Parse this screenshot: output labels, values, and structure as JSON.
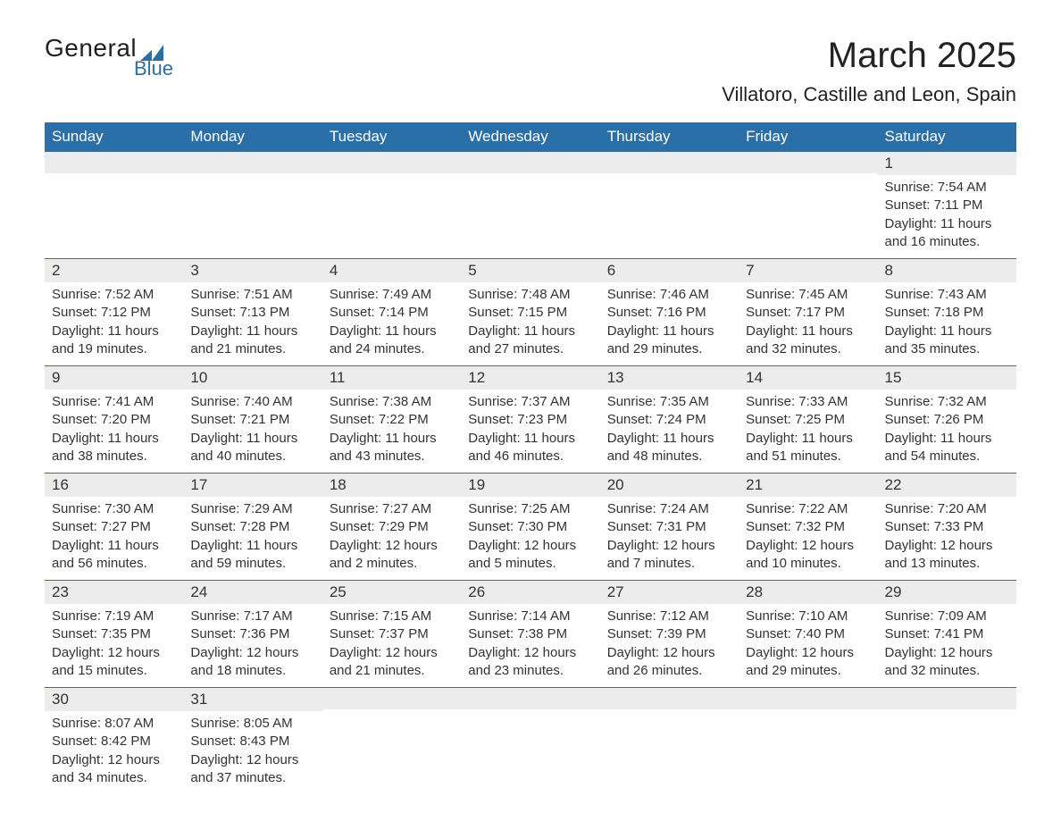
{
  "logo": {
    "main": "General",
    "sub": "Blue",
    "accent": "#2b6fa8"
  },
  "title": "March 2025",
  "location": "Villatoro, Castille and Leon, Spain",
  "dayHeaders": [
    "Sunday",
    "Monday",
    "Tuesday",
    "Wednesday",
    "Thursday",
    "Friday",
    "Saturday"
  ],
  "colors": {
    "header_bg": "#2b6fa8",
    "header_text": "#ffffff",
    "daynum_bg": "#ececec",
    "text": "#333333",
    "row_border": "#2b6fa8"
  },
  "fonts": {
    "title_size_pt": 30,
    "location_size_pt": 16,
    "header_size_pt": 13,
    "daynum_size_pt": 13,
    "body_size_pt": 11
  },
  "weeks": [
    [
      {
        "n": "",
        "sunrise": "",
        "sunset": "",
        "daylight": ""
      },
      {
        "n": "",
        "sunrise": "",
        "sunset": "",
        "daylight": ""
      },
      {
        "n": "",
        "sunrise": "",
        "sunset": "",
        "daylight": ""
      },
      {
        "n": "",
        "sunrise": "",
        "sunset": "",
        "daylight": ""
      },
      {
        "n": "",
        "sunrise": "",
        "sunset": "",
        "daylight": ""
      },
      {
        "n": "",
        "sunrise": "",
        "sunset": "",
        "daylight": ""
      },
      {
        "n": "1",
        "sunrise": "Sunrise: 7:54 AM",
        "sunset": "Sunset: 7:11 PM",
        "daylight": "Daylight: 11 hours and 16 minutes."
      }
    ],
    [
      {
        "n": "2",
        "sunrise": "Sunrise: 7:52 AM",
        "sunset": "Sunset: 7:12 PM",
        "daylight": "Daylight: 11 hours and 19 minutes."
      },
      {
        "n": "3",
        "sunrise": "Sunrise: 7:51 AM",
        "sunset": "Sunset: 7:13 PM",
        "daylight": "Daylight: 11 hours and 21 minutes."
      },
      {
        "n": "4",
        "sunrise": "Sunrise: 7:49 AM",
        "sunset": "Sunset: 7:14 PM",
        "daylight": "Daylight: 11 hours and 24 minutes."
      },
      {
        "n": "5",
        "sunrise": "Sunrise: 7:48 AM",
        "sunset": "Sunset: 7:15 PM",
        "daylight": "Daylight: 11 hours and 27 minutes."
      },
      {
        "n": "6",
        "sunrise": "Sunrise: 7:46 AM",
        "sunset": "Sunset: 7:16 PM",
        "daylight": "Daylight: 11 hours and 29 minutes."
      },
      {
        "n": "7",
        "sunrise": "Sunrise: 7:45 AM",
        "sunset": "Sunset: 7:17 PM",
        "daylight": "Daylight: 11 hours and 32 minutes."
      },
      {
        "n": "8",
        "sunrise": "Sunrise: 7:43 AM",
        "sunset": "Sunset: 7:18 PM",
        "daylight": "Daylight: 11 hours and 35 minutes."
      }
    ],
    [
      {
        "n": "9",
        "sunrise": "Sunrise: 7:41 AM",
        "sunset": "Sunset: 7:20 PM",
        "daylight": "Daylight: 11 hours and 38 minutes."
      },
      {
        "n": "10",
        "sunrise": "Sunrise: 7:40 AM",
        "sunset": "Sunset: 7:21 PM",
        "daylight": "Daylight: 11 hours and 40 minutes."
      },
      {
        "n": "11",
        "sunrise": "Sunrise: 7:38 AM",
        "sunset": "Sunset: 7:22 PM",
        "daylight": "Daylight: 11 hours and 43 minutes."
      },
      {
        "n": "12",
        "sunrise": "Sunrise: 7:37 AM",
        "sunset": "Sunset: 7:23 PM",
        "daylight": "Daylight: 11 hours and 46 minutes."
      },
      {
        "n": "13",
        "sunrise": "Sunrise: 7:35 AM",
        "sunset": "Sunset: 7:24 PM",
        "daylight": "Daylight: 11 hours and 48 minutes."
      },
      {
        "n": "14",
        "sunrise": "Sunrise: 7:33 AM",
        "sunset": "Sunset: 7:25 PM",
        "daylight": "Daylight: 11 hours and 51 minutes."
      },
      {
        "n": "15",
        "sunrise": "Sunrise: 7:32 AM",
        "sunset": "Sunset: 7:26 PM",
        "daylight": "Daylight: 11 hours and 54 minutes."
      }
    ],
    [
      {
        "n": "16",
        "sunrise": "Sunrise: 7:30 AM",
        "sunset": "Sunset: 7:27 PM",
        "daylight": "Daylight: 11 hours and 56 minutes."
      },
      {
        "n": "17",
        "sunrise": "Sunrise: 7:29 AM",
        "sunset": "Sunset: 7:28 PM",
        "daylight": "Daylight: 11 hours and 59 minutes."
      },
      {
        "n": "18",
        "sunrise": "Sunrise: 7:27 AM",
        "sunset": "Sunset: 7:29 PM",
        "daylight": "Daylight: 12 hours and 2 minutes."
      },
      {
        "n": "19",
        "sunrise": "Sunrise: 7:25 AM",
        "sunset": "Sunset: 7:30 PM",
        "daylight": "Daylight: 12 hours and 5 minutes."
      },
      {
        "n": "20",
        "sunrise": "Sunrise: 7:24 AM",
        "sunset": "Sunset: 7:31 PM",
        "daylight": "Daylight: 12 hours and 7 minutes."
      },
      {
        "n": "21",
        "sunrise": "Sunrise: 7:22 AM",
        "sunset": "Sunset: 7:32 PM",
        "daylight": "Daylight: 12 hours and 10 minutes."
      },
      {
        "n": "22",
        "sunrise": "Sunrise: 7:20 AM",
        "sunset": "Sunset: 7:33 PM",
        "daylight": "Daylight: 12 hours and 13 minutes."
      }
    ],
    [
      {
        "n": "23",
        "sunrise": "Sunrise: 7:19 AM",
        "sunset": "Sunset: 7:35 PM",
        "daylight": "Daylight: 12 hours and 15 minutes."
      },
      {
        "n": "24",
        "sunrise": "Sunrise: 7:17 AM",
        "sunset": "Sunset: 7:36 PM",
        "daylight": "Daylight: 12 hours and 18 minutes."
      },
      {
        "n": "25",
        "sunrise": "Sunrise: 7:15 AM",
        "sunset": "Sunset: 7:37 PM",
        "daylight": "Daylight: 12 hours and 21 minutes."
      },
      {
        "n": "26",
        "sunrise": "Sunrise: 7:14 AM",
        "sunset": "Sunset: 7:38 PM",
        "daylight": "Daylight: 12 hours and 23 minutes."
      },
      {
        "n": "27",
        "sunrise": "Sunrise: 7:12 AM",
        "sunset": "Sunset: 7:39 PM",
        "daylight": "Daylight: 12 hours and 26 minutes."
      },
      {
        "n": "28",
        "sunrise": "Sunrise: 7:10 AM",
        "sunset": "Sunset: 7:40 PM",
        "daylight": "Daylight: 12 hours and 29 minutes."
      },
      {
        "n": "29",
        "sunrise": "Sunrise: 7:09 AM",
        "sunset": "Sunset: 7:41 PM",
        "daylight": "Daylight: 12 hours and 32 minutes."
      }
    ],
    [
      {
        "n": "30",
        "sunrise": "Sunrise: 8:07 AM",
        "sunset": "Sunset: 8:42 PM",
        "daylight": "Daylight: 12 hours and 34 minutes."
      },
      {
        "n": "31",
        "sunrise": "Sunrise: 8:05 AM",
        "sunset": "Sunset: 8:43 PM",
        "daylight": "Daylight: 12 hours and 37 minutes."
      },
      {
        "n": "",
        "sunrise": "",
        "sunset": "",
        "daylight": ""
      },
      {
        "n": "",
        "sunrise": "",
        "sunset": "",
        "daylight": ""
      },
      {
        "n": "",
        "sunrise": "",
        "sunset": "",
        "daylight": ""
      },
      {
        "n": "",
        "sunrise": "",
        "sunset": "",
        "daylight": ""
      },
      {
        "n": "",
        "sunrise": "",
        "sunset": "",
        "daylight": ""
      }
    ]
  ]
}
